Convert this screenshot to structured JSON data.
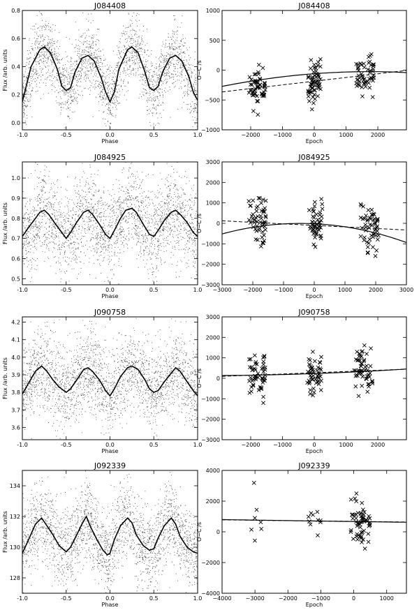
{
  "figure": {
    "description_free": true
  },
  "chart_data": [
    {
      "type": "scatter",
      "panel": "light-curve",
      "title": "J084408",
      "xlabel": "Phase",
      "ylabel": "Flux /arb. units",
      "xlim": [
        -1.0,
        1.0
      ],
      "ylim": [
        -0.05,
        0.8
      ],
      "xticks": [
        -1.0,
        -0.5,
        0.0,
        0.5,
        1.0
      ],
      "xtick_labels": [
        "-1.0",
        "-0.5",
        "0.0",
        "0.5",
        "1.0"
      ],
      "yticks": [
        0.0,
        0.2,
        0.4,
        0.6,
        0.8
      ],
      "ytick_labels": [
        "0.0",
        "0.2",
        "0.4",
        "0.6",
        "0.8"
      ],
      "curve": {
        "x": [
          -1.0,
          -0.9,
          -0.8,
          -0.75,
          -0.68,
          -0.6,
          -0.55,
          -0.5,
          -0.45,
          -0.4,
          -0.32,
          -0.25,
          -0.18,
          -0.1,
          -0.05,
          0.0,
          0.05,
          0.1,
          0.2,
          0.25,
          0.32,
          0.4,
          0.45,
          0.5,
          0.55,
          0.6,
          0.68,
          0.75,
          0.82,
          0.9,
          0.95,
          1.0
        ],
        "y": [
          0.15,
          0.4,
          0.52,
          0.54,
          0.5,
          0.38,
          0.26,
          0.23,
          0.25,
          0.36,
          0.46,
          0.48,
          0.44,
          0.32,
          0.22,
          0.15,
          0.22,
          0.38,
          0.52,
          0.54,
          0.5,
          0.36,
          0.25,
          0.23,
          0.26,
          0.36,
          0.46,
          0.48,
          0.44,
          0.33,
          0.22,
          0.16
        ]
      },
      "scatter_sigma": 0.12,
      "scatter_count": 2600
    },
    {
      "type": "scatter",
      "panel": "o-c",
      "title": "J084408",
      "xlabel": "Epoch",
      "ylabel": "O−C /s",
      "xlim": [
        -2900,
        2900
      ],
      "ylim": [
        -1000,
        1000
      ],
      "xticks": [
        -2000,
        -1000,
        0,
        1000,
        2000
      ],
      "xtick_labels": [
        "−2000",
        "−1000",
        "0",
        "1000",
        "2000"
      ],
      "yticks": [
        -1000,
        -500,
        0,
        500,
        1000
      ],
      "ytick_labels": [
        "−1000",
        "−500",
        "0",
        "500",
        "1000"
      ],
      "groups": [
        {
          "center": -1800,
          "spread": 260,
          "sigma": 150,
          "n": 55
        },
        {
          "center": 0,
          "spread": 200,
          "sigma": 170,
          "n": 60
        },
        {
          "center": 1600,
          "spread": 280,
          "sigma": 200,
          "n": 55
        }
      ],
      "fit_linear": [
        -185,
        0.062
      ],
      "fit_quadratic": [
        -60,
        0.04,
        -1.15e-05
      ]
    },
    {
      "type": "scatter",
      "panel": "light-curve",
      "title": "J084925",
      "xlabel": "Phase",
      "ylabel": "Flux /arb. units",
      "xlim": [
        -1.0,
        1.0
      ],
      "ylim": [
        0.47,
        1.08
      ],
      "xticks": [
        -1.0,
        -0.5,
        0.0,
        0.5,
        1.0
      ],
      "xtick_labels": [
        "-1.0",
        "-0.5",
        "0.0",
        "0.5",
        "1.0"
      ],
      "yticks": [
        0.5,
        0.6,
        0.7,
        0.8,
        0.9,
        1.0
      ],
      "ytick_labels": [
        "0.5",
        "0.6",
        "0.7",
        "0.8",
        "0.9",
        "1.0"
      ],
      "curve": {
        "x": [
          -1.0,
          -0.92,
          -0.85,
          -0.8,
          -0.75,
          -0.7,
          -0.62,
          -0.55,
          -0.5,
          -0.45,
          -0.38,
          -0.3,
          -0.25,
          -0.2,
          -0.12,
          -0.05,
          0.0,
          0.05,
          0.12,
          0.18,
          0.25,
          0.3,
          0.38,
          0.45,
          0.5,
          0.55,
          0.62,
          0.7,
          0.75,
          0.8,
          0.88,
          0.95,
          1.0
        ],
        "y": [
          0.71,
          0.76,
          0.8,
          0.83,
          0.84,
          0.82,
          0.77,
          0.73,
          0.7,
          0.73,
          0.78,
          0.83,
          0.84,
          0.82,
          0.77,
          0.72,
          0.7,
          0.74,
          0.8,
          0.84,
          0.85,
          0.83,
          0.77,
          0.72,
          0.71,
          0.74,
          0.79,
          0.83,
          0.84,
          0.82,
          0.78,
          0.73,
          0.71
        ]
      },
      "scatter_sigma": 0.11,
      "scatter_count": 2600
    },
    {
      "type": "scatter",
      "panel": "o-c",
      "title": "J084925",
      "xlabel": "Epoch",
      "ylabel": "O−C /s",
      "xlim": [
        -3000,
        3000
      ],
      "ylim": [
        -3000,
        3000
      ],
      "xticks": [
        -3000,
        -2000,
        -1000,
        0,
        1000,
        2000,
        3000
      ],
      "xtick_labels": [
        "−3000",
        "−2000",
        "−1000",
        "0",
        "1000",
        "2000",
        "3000"
      ],
      "yticks": [
        -3000,
        -2000,
        -1000,
        0,
        1000,
        2000,
        3000
      ],
      "ytick_labels": [
        "−3000",
        "−2000",
        "−1000",
        "0",
        "1000",
        "2000",
        "3000"
      ],
      "groups": [
        {
          "center": -1850,
          "spread": 280,
          "sigma": 600,
          "n": 55
        },
        {
          "center": 50,
          "spread": 220,
          "sigma": 550,
          "n": 50
        },
        {
          "center": 1800,
          "spread": 300,
          "sigma": 650,
          "n": 55
        }
      ],
      "fit_linear": [
        -100,
        -0.075
      ],
      "fit_quadratic": [
        -20,
        -0.07,
        -7.85e-05
      ]
    },
    {
      "type": "scatter",
      "panel": "light-curve",
      "title": "J090758",
      "xlabel": "Phase",
      "ylabel": "Flux /arb. units",
      "xlim": [
        -1.0,
        1.0
      ],
      "ylim": [
        3.53,
        4.23
      ],
      "xticks": [
        -1.0,
        -0.5,
        0.0,
        0.5,
        1.0
      ],
      "xtick_labels": [
        "-1.0",
        "-0.5",
        "0.0",
        "0.5",
        "1.0"
      ],
      "yticks": [
        3.6,
        3.7,
        3.8,
        3.9,
        4.0,
        4.1,
        4.2
      ],
      "ytick_labels": [
        "3.6",
        "3.7",
        "3.8",
        "3.9",
        "4.0",
        "4.1",
        "4.2"
      ],
      "curve": {
        "x": [
          -1.0,
          -0.92,
          -0.85,
          -0.78,
          -0.72,
          -0.65,
          -0.58,
          -0.5,
          -0.45,
          -0.38,
          -0.3,
          -0.25,
          -0.2,
          -0.12,
          -0.05,
          0.0,
          0.05,
          0.12,
          0.2,
          0.25,
          0.32,
          0.4,
          0.45,
          0.5,
          0.55,
          0.62,
          0.7,
          0.75,
          0.8,
          0.88,
          0.95,
          1.0
        ],
        "y": [
          3.79,
          3.86,
          3.92,
          3.95,
          3.92,
          3.87,
          3.83,
          3.8,
          3.82,
          3.87,
          3.93,
          3.94,
          3.92,
          3.87,
          3.81,
          3.78,
          3.82,
          3.89,
          3.94,
          3.95,
          3.93,
          3.87,
          3.82,
          3.8,
          3.81,
          3.86,
          3.91,
          3.94,
          3.92,
          3.86,
          3.81,
          3.78
        ]
      },
      "scatter_sigma": 0.12,
      "scatter_count": 2600
    },
    {
      "type": "scatter",
      "panel": "o-c",
      "title": "J090758",
      "xlabel": "Epoch",
      "ylabel": "O−C /s",
      "xlim": [
        -2900,
        2900
      ],
      "ylim": [
        -3000,
        3000
      ],
      "xticks": [
        -2000,
        -1000,
        0,
        1000,
        2000
      ],
      "xtick_labels": [
        "−2000",
        "−1000",
        "0",
        "1000",
        "2000"
      ],
      "yticks": [
        -3000,
        -2000,
        -1000,
        0,
        1000,
        2000,
        3000
      ],
      "ytick_labels": [
        "−3000",
        "−2000",
        "−1000",
        "0",
        "1000",
        "2000",
        "3000"
      ],
      "groups": [
        {
          "center": -1800,
          "spread": 260,
          "sigma": 500,
          "n": 55
        },
        {
          "center": 0,
          "spread": 220,
          "sigma": 520,
          "n": 50
        },
        {
          "center": 1550,
          "spread": 300,
          "sigma": 650,
          "n": 55
        }
      ],
      "fit_linear": [
        270,
        0.06
      ],
      "fit_quadratic": [
        230,
        0.055,
        7.5e-06
      ]
    },
    {
      "type": "scatter",
      "panel": "light-curve",
      "title": "J092339",
      "xlabel": "Phase",
      "ylabel": "Flux /arb. units",
      "xlim": [
        -1.0,
        1.0
      ],
      "ylim": [
        127.0,
        135.0
      ],
      "xticks": [
        -1.0,
        -0.5,
        0.0,
        0.5,
        1.0
      ],
      "xtick_labels": [
        "-1.0",
        "-0.5",
        "0.0",
        "0.5",
        "1.0"
      ],
      "yticks": [
        128,
        130,
        132,
        134
      ],
      "ytick_labels": [
        "128",
        "130",
        "132",
        "134"
      ],
      "curve": {
        "x": [
          -1.0,
          -0.92,
          -0.85,
          -0.78,
          -0.72,
          -0.65,
          -0.58,
          -0.5,
          -0.45,
          -0.38,
          -0.32,
          -0.27,
          -0.22,
          -0.15,
          -0.08,
          -0.03,
          0.0,
          0.05,
          0.12,
          0.2,
          0.25,
          0.3,
          0.38,
          0.45,
          0.5,
          0.55,
          0.62,
          0.7,
          0.75,
          0.8,
          0.88,
          0.95,
          1.0
        ],
        "y": [
          129.6,
          130.6,
          131.5,
          131.9,
          131.4,
          130.8,
          130.1,
          129.7,
          130.0,
          130.8,
          131.5,
          132.0,
          131.3,
          130.5,
          129.8,
          129.5,
          129.6,
          130.5,
          131.4,
          131.9,
          131.6,
          130.8,
          130.1,
          129.8,
          129.9,
          130.6,
          131.4,
          131.9,
          131.5,
          130.7,
          130.0,
          129.7,
          129.6
        ]
      },
      "scatter_sigma": 1.3,
      "scatter_count": 2600
    },
    {
      "type": "scatter",
      "panel": "o-c",
      "title": "J092339",
      "xlabel": "Epoch",
      "ylabel": "O−C /s",
      "xlim": [
        -4000,
        1600
      ],
      "ylim": [
        -4000,
        4000
      ],
      "xticks": [
        -4000,
        -3000,
        -2000,
        -1000,
        0,
        1000
      ],
      "xtick_labels": [
        "−4000",
        "−3000",
        "−2000",
        "−1000",
        "0",
        "1000"
      ],
      "yticks": [
        -4000,
        -2000,
        0,
        2000,
        4000
      ],
      "ytick_labels": [
        "−4000",
        "−2000",
        "0",
        "2000",
        "4000"
      ],
      "groups": [
        {
          "center": -2950,
          "spread": 200,
          "sigma": 1200,
          "n": 7
        },
        {
          "center": -1200,
          "spread": 200,
          "sigma": 500,
          "n": 10
        },
        {
          "center": 200,
          "spread": 300,
          "sigma": 650,
          "n": 60
        }
      ],
      "fit_linear": [
        680,
        -0.025
      ],
      "fit_quadratic": [
        670,
        -0.03,
        5e-07
      ]
    }
  ]
}
